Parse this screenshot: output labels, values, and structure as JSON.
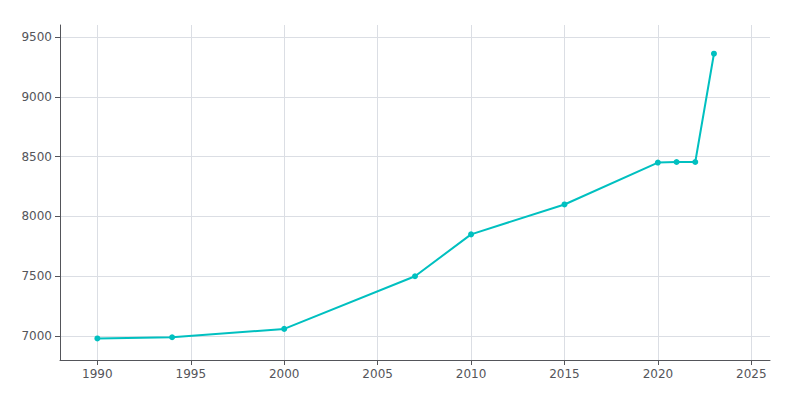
{
  "chart_data": {
    "type": "line",
    "x": [
      1990,
      1994,
      2000,
      2007,
      2010,
      2015,
      2020,
      2021,
      2022,
      2023
    ],
    "values": [
      6980,
      6990,
      7060,
      7500,
      7850,
      8100,
      8450,
      8455,
      8455,
      9360
    ],
    "color": "#00C0C0",
    "marker": "circle",
    "xlim": [
      1988,
      2026
    ],
    "xticks": [
      1990,
      1995,
      2000,
      2005,
      2010,
      2015,
      2020,
      2025
    ],
    "ylim": [
      6800,
      9600
    ],
    "yticks": [
      7000,
      7500,
      8000,
      8500,
      9000,
      9500
    ],
    "grid": true
  }
}
